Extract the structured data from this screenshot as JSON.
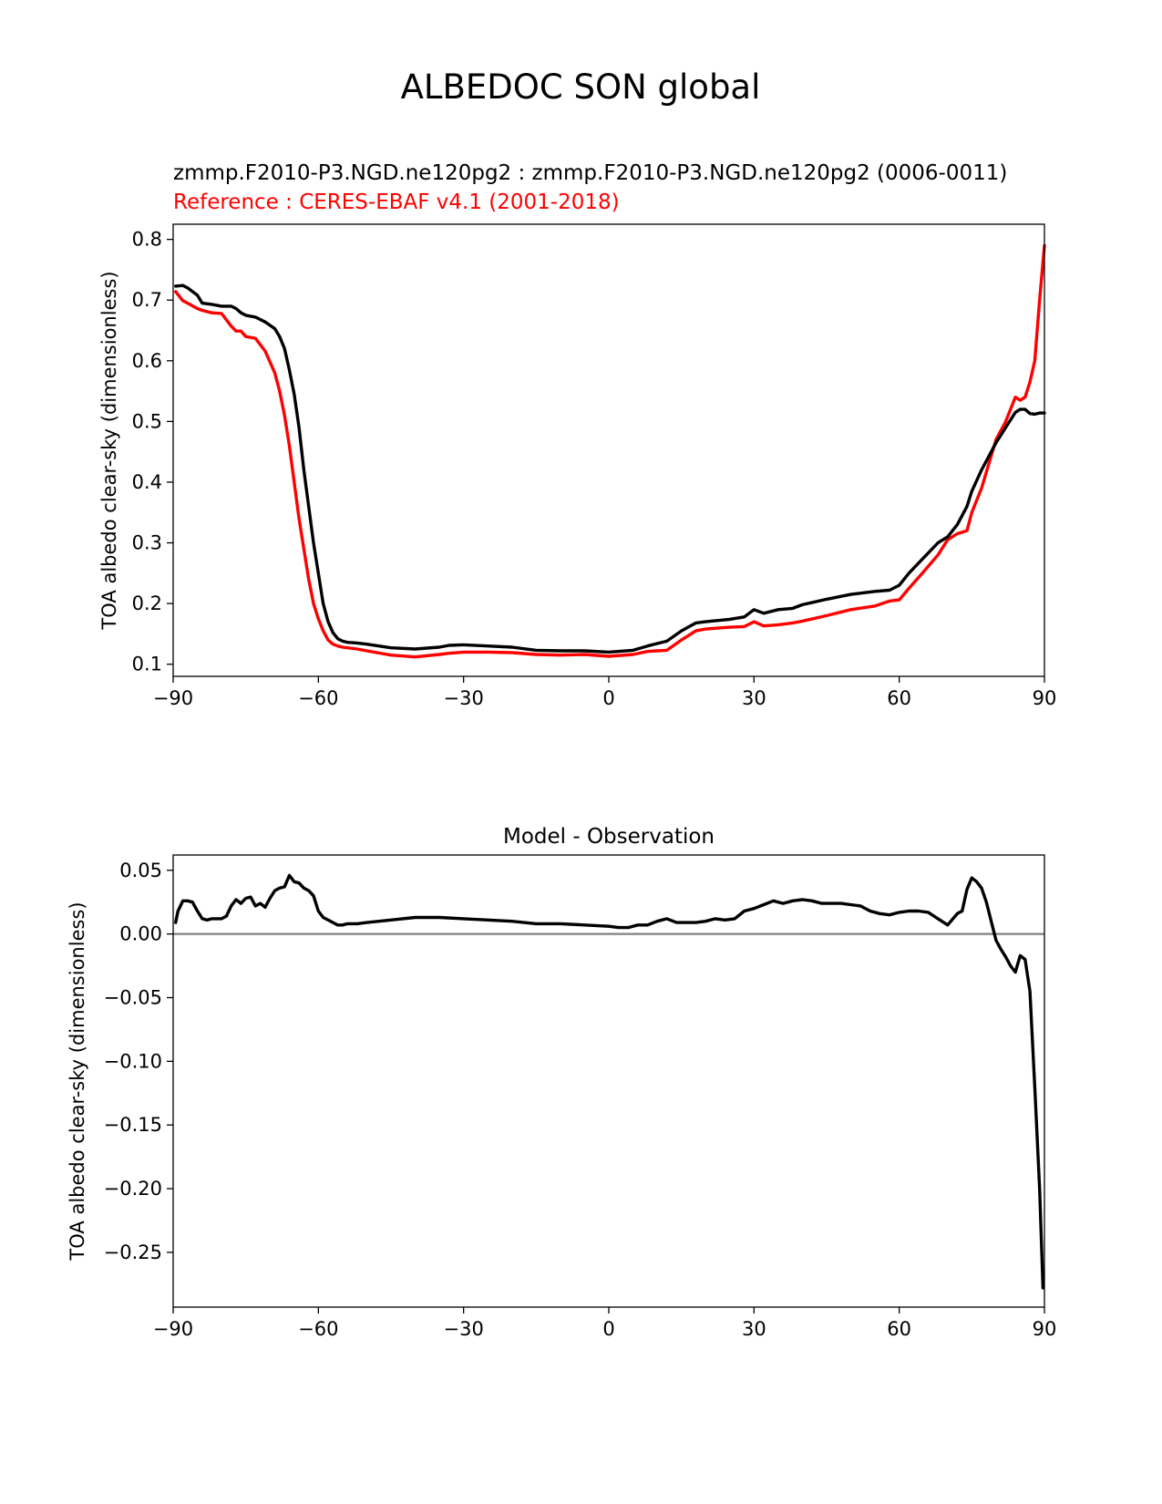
{
  "figure": {
    "suptitle": "ALBEDOC SON global",
    "colors": {
      "test": "#000000",
      "reference": "#ff0000",
      "zero_line": "#808080"
    }
  },
  "chart_data": [
    {
      "type": "line",
      "title": "zmmp.F2010-P3.NGD.ne120pg2 : zmmp.F2010-P3.NGD.ne120pg2 (0006-0011)",
      "subtitle": "Reference : CERES-EBAF v4.1 (2001-2018)",
      "xlabel": "",
      "ylabel": "TOA albedo clear-sky (dimensionless)",
      "xlim": [
        -90,
        90
      ],
      "ylim": [
        0.08,
        0.825
      ],
      "xticks": [
        -90,
        -60,
        -30,
        0,
        30,
        60,
        90
      ],
      "xtick_labels": [
        "−90",
        "−60",
        "−30",
        "0",
        "30",
        "60",
        "90"
      ],
      "yticks": [
        0.1,
        0.2,
        0.3,
        0.4,
        0.5,
        0.6,
        0.7,
        0.8
      ],
      "ytick_labels": [
        "0.1",
        "0.2",
        "0.3",
        "0.4",
        "0.5",
        "0.6",
        "0.7",
        "0.8"
      ],
      "grid": false,
      "series": [
        {
          "color": "#000000",
          "x": [
            -89.5,
            -88,
            -87,
            -85,
            -84,
            -82,
            -80,
            -78,
            -77,
            -76,
            -75,
            -73,
            -71,
            -69,
            -68,
            -67,
            -66,
            -65,
            -64,
            -63,
            -62,
            -61,
            -60,
            -59,
            -58,
            -57,
            -56,
            -55,
            -54,
            -52,
            -50,
            -45,
            -40,
            -35,
            -33,
            -30,
            -25,
            -20,
            -15,
            -10,
            -5,
            0,
            5,
            8,
            10,
            12,
            15,
            18,
            20,
            25,
            28,
            30,
            32,
            35,
            38,
            40,
            45,
            50,
            55,
            58,
            60,
            62,
            65,
            68,
            70,
            72,
            74,
            75,
            77,
            80,
            82,
            84,
            85,
            86,
            87,
            88,
            89,
            90
          ],
          "y": [
            0.723,
            0.724,
            0.72,
            0.708,
            0.695,
            0.693,
            0.69,
            0.69,
            0.686,
            0.679,
            0.675,
            0.672,
            0.664,
            0.653,
            0.64,
            0.62,
            0.585,
            0.545,
            0.49,
            0.42,
            0.36,
            0.3,
            0.25,
            0.2,
            0.17,
            0.152,
            0.142,
            0.138,
            0.136,
            0.135,
            0.133,
            0.127,
            0.125,
            0.128,
            0.131,
            0.132,
            0.13,
            0.128,
            0.123,
            0.122,
            0.122,
            0.12,
            0.123,
            0.13,
            0.134,
            0.138,
            0.155,
            0.168,
            0.17,
            0.174,
            0.178,
            0.19,
            0.184,
            0.19,
            0.192,
            0.198,
            0.207,
            0.215,
            0.22,
            0.222,
            0.23,
            0.25,
            0.275,
            0.3,
            0.31,
            0.33,
            0.36,
            0.385,
            0.42,
            0.465,
            0.49,
            0.515,
            0.52,
            0.52,
            0.513,
            0.512,
            0.514,
            0.514
          ]
        },
        {
          "color": "#ff0000",
          "x": [
            -89.5,
            -88,
            -87,
            -85,
            -84,
            -82,
            -80,
            -78,
            -77,
            -76,
            -75,
            -73,
            -71,
            -69,
            -68,
            -67,
            -66,
            -65,
            -64,
            -63,
            -62,
            -61,
            -60,
            -59,
            -58,
            -57,
            -56,
            -55,
            -54,
            -52,
            -50,
            -45,
            -40,
            -35,
            -33,
            -30,
            -25,
            -20,
            -15,
            -10,
            -5,
            0,
            5,
            8,
            10,
            12,
            15,
            18,
            20,
            25,
            28,
            30,
            32,
            35,
            38,
            40,
            45,
            50,
            55,
            58,
            60,
            62,
            65,
            68,
            70,
            72,
            74,
            75,
            77,
            80,
            82,
            84,
            85,
            86,
            87,
            88,
            89,
            90
          ],
          "y": [
            0.714,
            0.699,
            0.695,
            0.686,
            0.683,
            0.679,
            0.678,
            0.657,
            0.649,
            0.649,
            0.64,
            0.637,
            0.616,
            0.58,
            0.55,
            0.51,
            0.46,
            0.4,
            0.34,
            0.29,
            0.24,
            0.2,
            0.175,
            0.155,
            0.14,
            0.133,
            0.13,
            0.128,
            0.127,
            0.125,
            0.122,
            0.115,
            0.112,
            0.116,
            0.118,
            0.12,
            0.12,
            0.119,
            0.116,
            0.115,
            0.116,
            0.113,
            0.116,
            0.121,
            0.122,
            0.123,
            0.14,
            0.155,
            0.158,
            0.161,
            0.162,
            0.17,
            0.163,
            0.165,
            0.168,
            0.171,
            0.18,
            0.19,
            0.196,
            0.204,
            0.206,
            0.225,
            0.252,
            0.28,
            0.305,
            0.315,
            0.32,
            0.35,
            0.39,
            0.47,
            0.5,
            0.54,
            0.535,
            0.54,
            0.565,
            0.6,
            0.7,
            0.79
          ]
        }
      ]
    },
    {
      "type": "line",
      "title": "Model - Observation",
      "xlabel": "",
      "ylabel": "TOA albedo clear-sky (dimensionless)",
      "xlim": [
        -90,
        90
      ],
      "ylim": [
        -0.293,
        0.062
      ],
      "xticks": [
        -90,
        -60,
        -30,
        0,
        30,
        60,
        90
      ],
      "xtick_labels": [
        "−90",
        "−60",
        "−30",
        "0",
        "30",
        "60",
        "90"
      ],
      "yticks": [
        0.05,
        0.0,
        -0.05,
        -0.1,
        -0.15,
        -0.2,
        -0.25
      ],
      "ytick_labels": [
        "0.05",
        "0.00",
        "−0.05",
        "−0.10",
        "−0.15",
        "−0.20",
        "−0.25"
      ],
      "grid": false,
      "zero_line": 0.0,
      "series": [
        {
          "color": "#000000",
          "x": [
            -89.5,
            -89,
            -88,
            -87,
            -86,
            -85,
            -84,
            -83,
            -82,
            -81,
            -80,
            -79,
            -78,
            -77,
            -76,
            -75,
            -74,
            -73,
            -72,
            -71,
            -70,
            -69,
            -68,
            -67,
            -66,
            -65,
            -64,
            -63,
            -62,
            -61,
            -60,
            -59,
            -58,
            -57,
            -56,
            -55,
            -54,
            -52,
            -50,
            -45,
            -40,
            -35,
            -30,
            -25,
            -20,
            -15,
            -10,
            -5,
            0,
            2,
            4,
            6,
            8,
            10,
            12,
            14,
            16,
            18,
            20,
            22,
            24,
            26,
            28,
            30,
            32,
            34,
            36,
            38,
            40,
            42,
            44,
            46,
            48,
            50,
            52,
            54,
            56,
            58,
            60,
            62,
            64,
            66,
            68,
            70,
            72,
            73,
            74,
            75,
            76,
            77,
            78,
            79,
            80,
            81,
            82,
            83,
            84,
            85,
            86,
            87,
            88,
            89,
            89.7
          ],
          "y": [
            0.009,
            0.018,
            0.026,
            0.026,
            0.025,
            0.018,
            0.012,
            0.011,
            0.012,
            0.012,
            0.012,
            0.014,
            0.022,
            0.027,
            0.024,
            0.028,
            0.029,
            0.022,
            0.024,
            0.021,
            0.028,
            0.034,
            0.036,
            0.037,
            0.046,
            0.041,
            0.04,
            0.036,
            0.034,
            0.03,
            0.018,
            0.013,
            0.011,
            0.009,
            0.007,
            0.007,
            0.008,
            0.008,
            0.009,
            0.011,
            0.013,
            0.013,
            0.012,
            0.011,
            0.01,
            0.008,
            0.008,
            0.007,
            0.006,
            0.005,
            0.005,
            0.007,
            0.007,
            0.01,
            0.012,
            0.009,
            0.009,
            0.009,
            0.01,
            0.012,
            0.011,
            0.012,
            0.018,
            0.02,
            0.023,
            0.026,
            0.024,
            0.026,
            0.027,
            0.026,
            0.024,
            0.024,
            0.024,
            0.023,
            0.022,
            0.018,
            0.016,
            0.015,
            0.017,
            0.018,
            0.018,
            0.017,
            0.012,
            0.007,
            0.016,
            0.018,
            0.035,
            0.044,
            0.041,
            0.036,
            0.025,
            0.01,
            -0.005,
            -0.012,
            -0.018,
            -0.025,
            -0.03,
            -0.017,
            -0.02,
            -0.045,
            -0.12,
            -0.2,
            -0.278
          ]
        }
      ]
    }
  ]
}
